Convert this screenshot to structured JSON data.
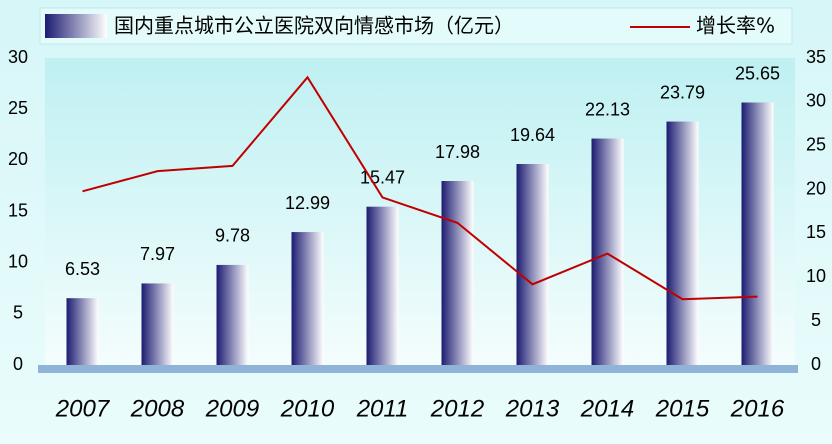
{
  "chart_data": {
    "type": "bar+line",
    "categories": [
      "2007",
      "2008",
      "2009",
      "2010",
      "2011",
      "2012",
      "2013",
      "2014",
      "2015",
      "2016"
    ],
    "series": [
      {
        "name": "国内重点城市公立医院双向情感市场（亿元）",
        "type": "bar",
        "color": "#1c1c72",
        "values": [
          6.53,
          7.97,
          9.78,
          12.99,
          15.47,
          17.98,
          19.64,
          22.13,
          23.79,
          25.65
        ]
      },
      {
        "name": "增长率%",
        "type": "line",
        "axis": "y2",
        "color": "#c00000",
        "values": [
          19.8,
          22.1,
          22.7,
          32.8,
          19.1,
          16.2,
          9.2,
          12.7,
          7.5,
          7.8
        ]
      }
    ],
    "ylim": [
      0,
      30
    ],
    "yticks": [
      0,
      5,
      10,
      15,
      20,
      25,
      30
    ],
    "y2lim": [
      0,
      35
    ],
    "y2ticks": [
      0,
      5,
      10,
      15,
      20,
      25,
      30,
      35
    ],
    "legend": "top"
  }
}
